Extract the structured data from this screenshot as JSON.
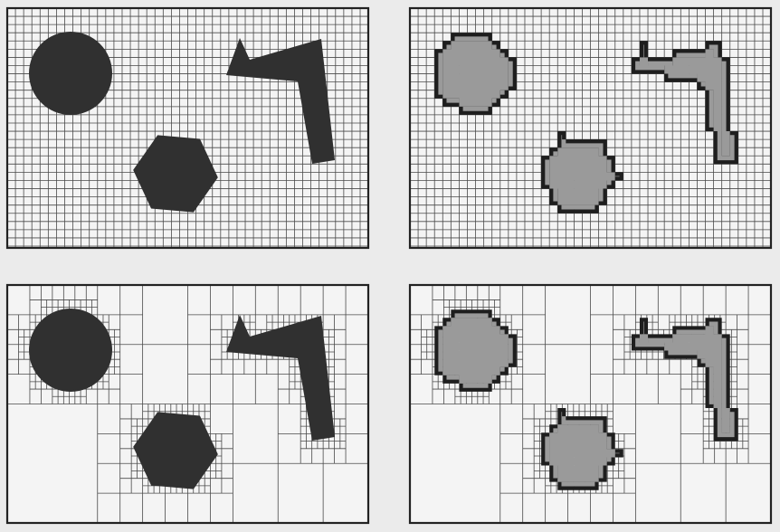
{
  "figure": {
    "colors": {
      "background": "#ebebeb",
      "panel_fill": "#f4f4f4",
      "grid_line": "#4a4a4a",
      "frame": "#222222",
      "solid_shape": "#303030",
      "raster_fill": "#9a9a9a",
      "raster_border": "#1e1e1e"
    },
    "panels": [
      {
        "key": "top-left",
        "kind": "fine-grid-vector",
        "grid": "uniform"
      },
      {
        "key": "top-right",
        "kind": "fine-grid-raster",
        "grid": "uniform"
      },
      {
        "key": "bottom-left",
        "kind": "quadtree-vector",
        "grid": "adaptive"
      },
      {
        "key": "bottom-right",
        "kind": "quadtree-raster",
        "grid": "adaptive"
      }
    ],
    "objects": [
      "circle",
      "hexagon",
      "bent-bar"
    ]
  }
}
